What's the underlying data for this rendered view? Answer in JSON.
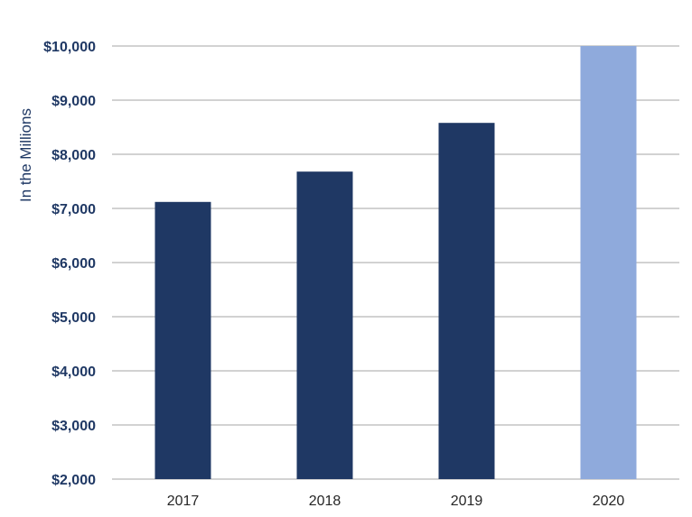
{
  "chart_data": {
    "type": "bar",
    "title": "",
    "xlabel": "",
    "ylabel": "In the Millions",
    "categories": [
      "2017",
      "2018",
      "2019",
      "2020"
    ],
    "values": [
      7120,
      7680,
      8580,
      10000
    ],
    "ylim": [
      2000,
      10000
    ],
    "yticks": [
      2000,
      3000,
      4000,
      5000,
      6000,
      7000,
      8000,
      9000,
      10000
    ],
    "ytick_labels": [
      "$2,000",
      "$3,000",
      "$4,000",
      "$5,000",
      "$6,000",
      "$7,000",
      "$8,000",
      "$9,000",
      "$10,000"
    ],
    "bar_colors": [
      "#1F3864",
      "#1F3864",
      "#1F3864",
      "#8FAADC"
    ],
    "grid": true,
    "legend": "none"
  }
}
